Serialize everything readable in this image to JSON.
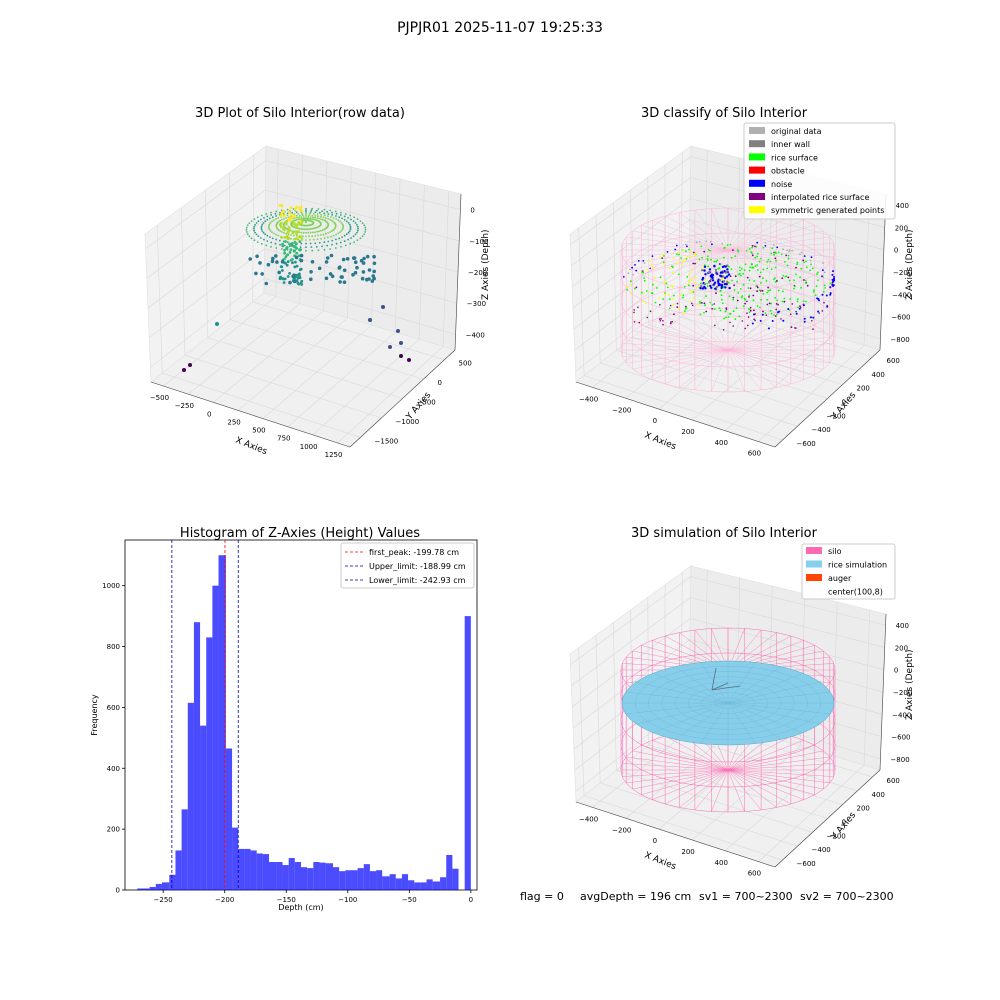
{
  "figure": {
    "suptitle": "PJPJR01 2025-11-07 19:25:33",
    "footer": {
      "flag": "flag = 0",
      "avg": "avgDepth = 196 cm",
      "sv1": "sv1 = 700~2300",
      "sv2": "sv2 = 700~2300"
    }
  },
  "chart_data": [
    {
      "type": "scatter",
      "subtype": "3d",
      "title": "3D Plot of Silo Interior(row data)",
      "xlabel": "X Axies",
      "ylabel": "Y Axies",
      "zlabel": "Z Axies (Depth)",
      "x_ticks": [
        "−500",
        "−250",
        "0",
        "250",
        "500",
        "750",
        "1000",
        "1250"
      ],
      "y_ticks": [
        "−1500",
        "−1000",
        "−500",
        "0",
        "500"
      ],
      "z_ticks": [
        "−400",
        "−300",
        "−200",
        "−100",
        "0"
      ],
      "colormap": "viridis",
      "grid": true
    },
    {
      "type": "scatter",
      "subtype": "3d",
      "title": "3D classify of Silo Interior",
      "xlabel": "X Axies",
      "ylabel": "Y Axies",
      "zlabel": "Z Axies (Depth)",
      "x_ticks": [
        "−400",
        "−200",
        "0",
        "200",
        "400",
        "600"
      ],
      "y_ticks": [
        "−600",
        "−400",
        "−200",
        "0",
        "200",
        "400",
        "600"
      ],
      "z_ticks": [
        "−800",
        "−600",
        "−400",
        "−200",
        "0",
        "200",
        "400"
      ],
      "legend_position": "top-right",
      "legend": [
        {
          "label": "original data",
          "color": "#b0b0b0"
        },
        {
          "label": "inner wall",
          "color": "#808080"
        },
        {
          "label": "rice surface",
          "color": "#00ff00"
        },
        {
          "label": "obstacle",
          "color": "#ff0000"
        },
        {
          "label": "noise",
          "color": "#0000ff"
        },
        {
          "label": "interpolated rice surface",
          "color": "#800080"
        },
        {
          "label": "symmetric generated points",
          "color": "#ffff00"
        }
      ],
      "grid": true
    },
    {
      "type": "bar",
      "subtype": "histogram",
      "title": "Histogram of Z-Axies (Height) Values",
      "xlabel": "Depth (cm)",
      "ylabel": "Frequency",
      "xlim": [
        -281,
        5
      ],
      "ylim": [
        0,
        1150
      ],
      "x_ticks": [
        -250,
        -200,
        -150,
        -100,
        -50,
        0
      ],
      "x_tick_labels": [
        "−250",
        "−200",
        "−150",
        "−100",
        "−50",
        "0"
      ],
      "y_ticks": [
        0,
        200,
        400,
        600,
        800,
        1000
      ],
      "bar_color": "#0000ff",
      "bins": [
        {
          "x0": -271,
          "x1": -266,
          "count": 5
        },
        {
          "x0": -266,
          "x1": -261,
          "count": 5
        },
        {
          "x0": -261,
          "x1": -256,
          "count": 10
        },
        {
          "x0": -256,
          "x1": -251,
          "count": 20
        },
        {
          "x0": -251,
          "x1": -245,
          "count": 25
        },
        {
          "x0": -245,
          "x1": -240,
          "count": 50
        },
        {
          "x0": -240,
          "x1": -235,
          "count": 130
        },
        {
          "x0": -235,
          "x1": -230,
          "count": 265
        },
        {
          "x0": -230,
          "x1": -225,
          "count": 615
        },
        {
          "x0": -225,
          "x1": -220,
          "count": 880
        },
        {
          "x0": -220,
          "x1": -215,
          "count": 540
        },
        {
          "x0": -215,
          "x1": -210,
          "count": 830
        },
        {
          "x0": -210,
          "x1": -205,
          "count": 1000
        },
        {
          "x0": -205,
          "x1": -199,
          "count": 1100
        },
        {
          "x0": -199,
          "x1": -194,
          "count": 465
        },
        {
          "x0": -194,
          "x1": -189,
          "count": 205
        },
        {
          "x0": -189,
          "x1": -184,
          "count": 135
        },
        {
          "x0": -184,
          "x1": -179,
          "count": 135
        },
        {
          "x0": -179,
          "x1": -174,
          "count": 130
        },
        {
          "x0": -174,
          "x1": -169,
          "count": 120
        },
        {
          "x0": -169,
          "x1": -164,
          "count": 118
        },
        {
          "x0": -164,
          "x1": -158,
          "count": 92
        },
        {
          "x0": -158,
          "x1": -153,
          "count": 92
        },
        {
          "x0": -153,
          "x1": -148,
          "count": 82
        },
        {
          "x0": -148,
          "x1": -143,
          "count": 105
        },
        {
          "x0": -143,
          "x1": -138,
          "count": 92
        },
        {
          "x0": -138,
          "x1": -133,
          "count": 75
        },
        {
          "x0": -133,
          "x1": -128,
          "count": 72
        },
        {
          "x0": -128,
          "x1": -123,
          "count": 92
        },
        {
          "x0": -123,
          "x1": -118,
          "count": 90
        },
        {
          "x0": -118,
          "x1": -112,
          "count": 88
        },
        {
          "x0": -112,
          "x1": -107,
          "count": 75
        },
        {
          "x0": -107,
          "x1": -102,
          "count": 62
        },
        {
          "x0": -102,
          "x1": -97,
          "count": 65
        },
        {
          "x0": -97,
          "x1": -92,
          "count": 65
        },
        {
          "x0": -92,
          "x1": -87,
          "count": 72
        },
        {
          "x0": -87,
          "x1": -82,
          "count": 85
        },
        {
          "x0": -82,
          "x1": -77,
          "count": 62
        },
        {
          "x0": -77,
          "x1": -72,
          "count": 65
        },
        {
          "x0": -72,
          "x1": -66,
          "count": 45
        },
        {
          "x0": -66,
          "x1": -61,
          "count": 52
        },
        {
          "x0": -61,
          "x1": -56,
          "count": 38
        },
        {
          "x0": -56,
          "x1": -51,
          "count": 52
        },
        {
          "x0": -51,
          "x1": -46,
          "count": 32
        },
        {
          "x0": -46,
          "x1": -41,
          "count": 25
        },
        {
          "x0": -41,
          "x1": -36,
          "count": 25
        },
        {
          "x0": -36,
          "x1": -31,
          "count": 35
        },
        {
          "x0": -31,
          "x1": -25,
          "count": 28
        },
        {
          "x0": -25,
          "x1": -20,
          "count": 42
        },
        {
          "x0": -20,
          "x1": -15,
          "count": 115
        },
        {
          "x0": -15,
          "x1": -10,
          "count": 70
        },
        {
          "x0": -10,
          "x1": -5,
          "count": 0
        },
        {
          "x0": -5,
          "x1": 0,
          "count": 900
        }
      ],
      "vlines": [
        {
          "label": "first_peak: -199.78 cm",
          "x": -199.78,
          "color": "#ff0000"
        },
        {
          "label": "Upper_limit: -188.99 cm",
          "x": -188.99,
          "color": "#0000aa"
        },
        {
          "label": "Lower_limit: -242.93 cm",
          "x": -242.93,
          "color": "#0000aa"
        }
      ],
      "legend_position": "top-right"
    },
    {
      "type": "other",
      "subtype": "3d",
      "title": "3D simulation of Silo Interior",
      "xlabel": "X Axies",
      "ylabel": "Y Axies",
      "zlabel": "Z Axies (Depth)",
      "x_ticks": [
        "−400",
        "−200",
        "0",
        "200",
        "400",
        "600"
      ],
      "y_ticks": [
        "−600",
        "−400",
        "−200",
        "0",
        "200",
        "400",
        "600"
      ],
      "z_ticks": [
        "−800",
        "−600",
        "−400",
        "−200",
        "0",
        "200",
        "400"
      ],
      "legend_position": "top-right",
      "legend": [
        {
          "label": "silo",
          "color": "#ff69b4"
        },
        {
          "label": "rice simulation",
          "color": "#87ceeb"
        },
        {
          "label": "auger",
          "color": "#ff4500"
        },
        {
          "label": "center(100,8)",
          "color": ""
        }
      ],
      "grid": true
    }
  ]
}
